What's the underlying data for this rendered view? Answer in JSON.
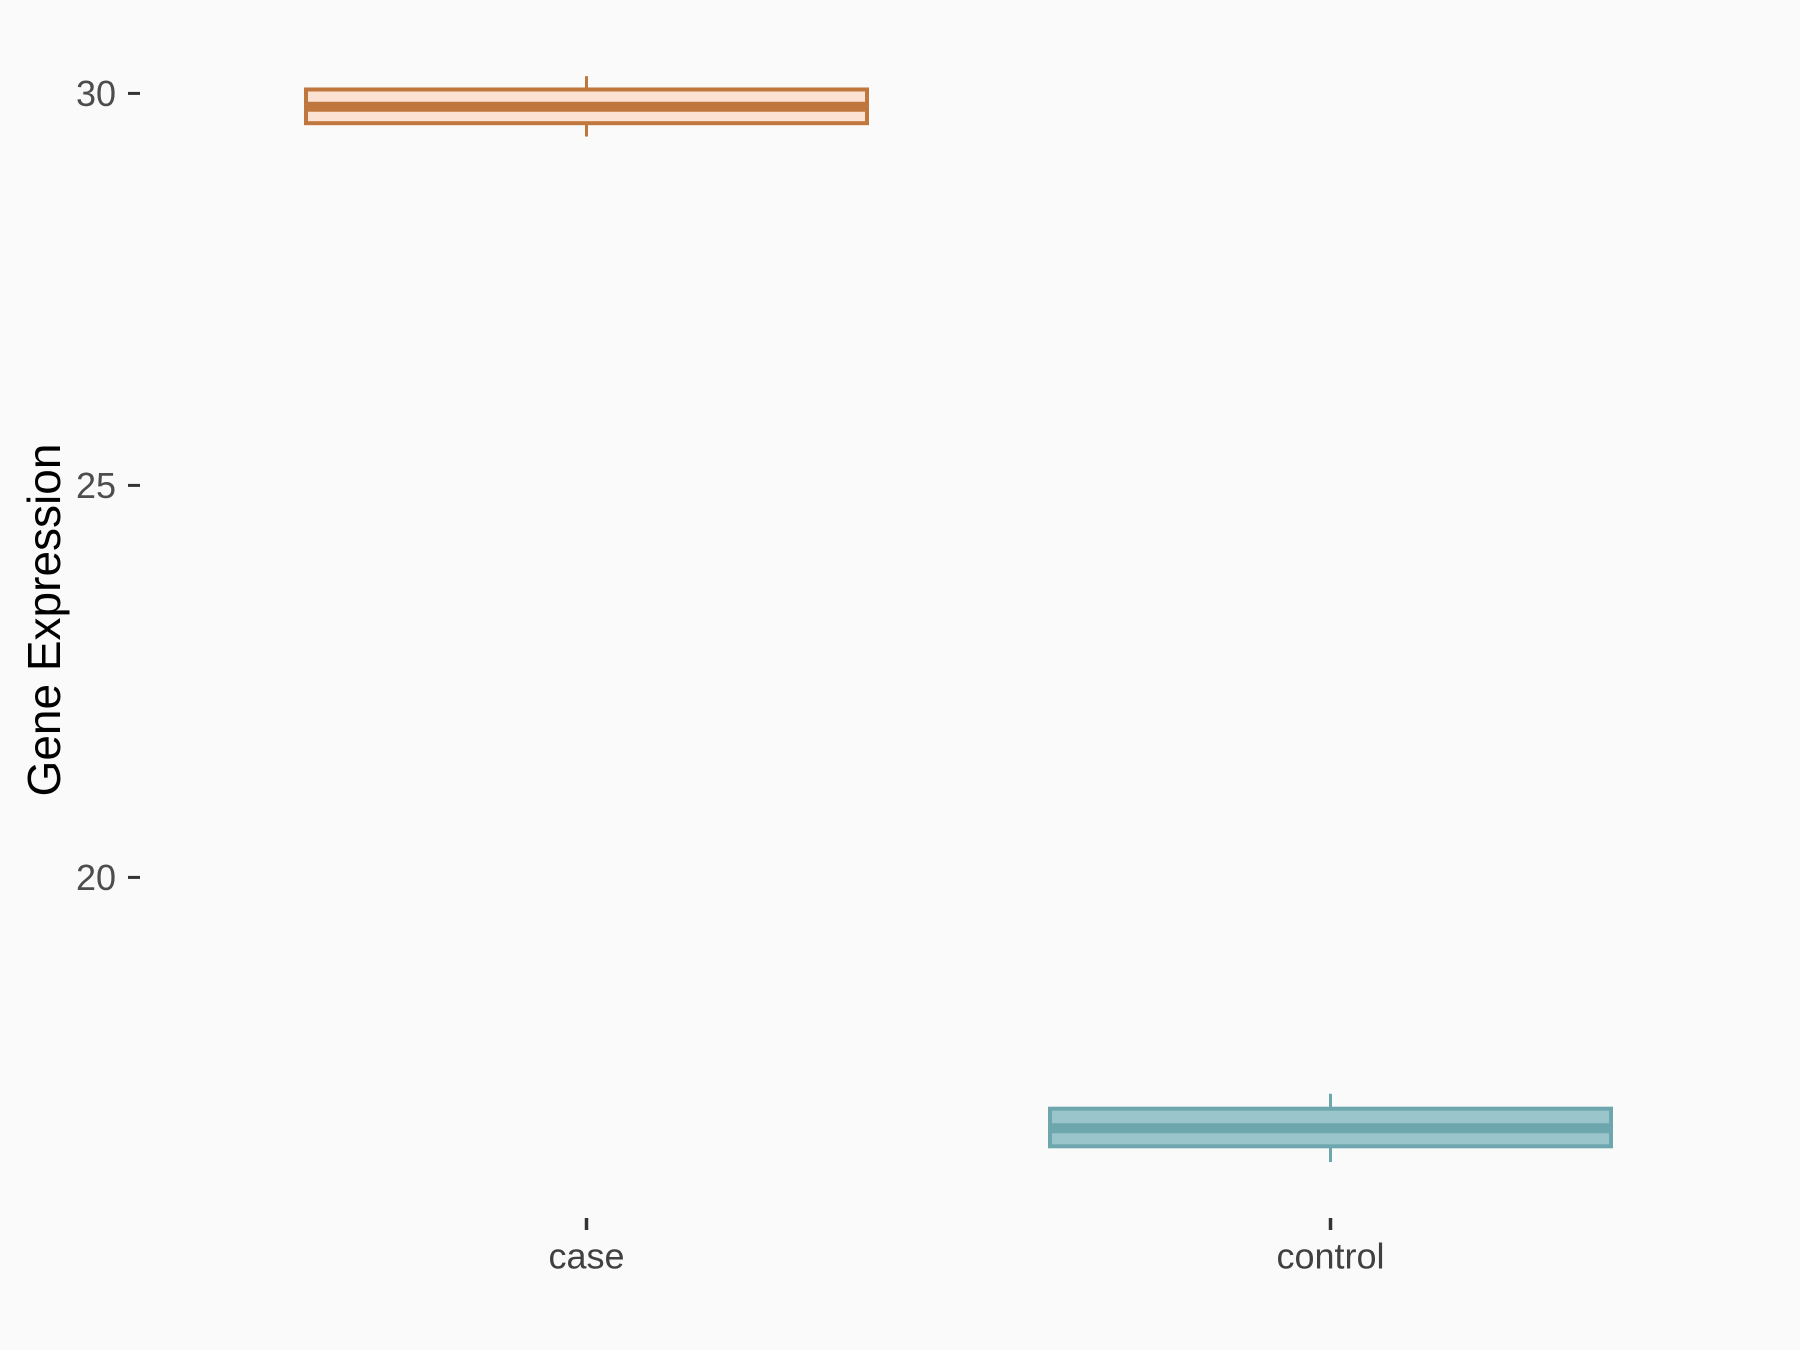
{
  "figure": {
    "background_color": "#FAFAFA",
    "tick_mark_color": "#333333",
    "tick_label_color": "#4D4D4D",
    "category_label_color": "#404040",
    "axis_title_color": "#000000"
  },
  "chart_data": {
    "type": "boxplot",
    "title": "",
    "xlabel": "",
    "ylabel": "Gene Expression",
    "categories": [
      "case",
      "control"
    ],
    "series": [
      {
        "name": "case",
        "whisker_low": 29.45,
        "q1": 29.62,
        "median": 29.83,
        "q3": 30.05,
        "whisker_high": 30.22,
        "stroke_color": "#C0773E",
        "fill_color": "#FBE2D2"
      },
      {
        "name": "control",
        "whisker_low": 16.37,
        "q1": 16.57,
        "median": 16.8,
        "q3": 17.05,
        "whisker_high": 17.24,
        "stroke_color": "#6DA7AD",
        "fill_color": "#9AC5CA"
      }
    ],
    "y_ticks": [
      20,
      25,
      30
    ],
    "y_tick_labels": [
      "20",
      "25",
      "30"
    ],
    "ylim": [
      16,
      31
    ],
    "grid": "off",
    "legend": "none",
    "axis_lines": "none",
    "orientation": "vertical"
  }
}
